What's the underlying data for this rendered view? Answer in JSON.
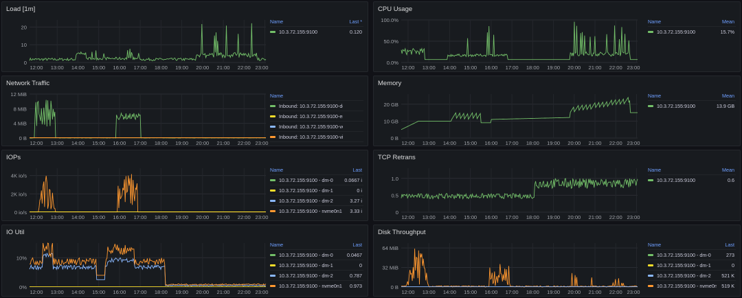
{
  "colors": {
    "green": "#73bf69",
    "yellow": "#fade2a",
    "blue": "#8ab8ff",
    "orange": "#ff9830",
    "red": "#f2495c"
  },
  "panels": [
    {
      "id": "load",
      "title": "Load [1m]",
      "cols": [
        "Name",
        "Last *"
      ],
      "yticks": [
        "20",
        "10",
        "0"
      ],
      "xticks": [
        "12:00",
        "13:00",
        "14:00",
        "15:00",
        "16:00",
        "17:00",
        "18:00",
        "19:00",
        "20:00",
        "21:00",
        "22:00",
        "23:00"
      ],
      "rows": [
        {
          "color": "green",
          "name": "10.3.72.155:9100",
          "value": "0.120"
        }
      ]
    },
    {
      "id": "cpu",
      "title": "CPU Usage",
      "cols": [
        "Name",
        "Mean"
      ],
      "yticks": [
        "100.0%",
        "50.0%",
        "0.0%"
      ],
      "xticks": [
        "12:00",
        "13:00",
        "14:00",
        "15:00",
        "16:00",
        "17:00",
        "18:00",
        "19:00",
        "20:00",
        "21:00",
        "22:00",
        "23:00"
      ],
      "rows": [
        {
          "color": "green",
          "name": "10.3.72.155:9100",
          "value": "15.7%"
        }
      ]
    },
    {
      "id": "net",
      "title": "Network Traffic",
      "cols": [
        "Name",
        ""
      ],
      "yticks": [
        "12 MiB",
        "8 MiB",
        "4 MiB",
        "0 B"
      ],
      "xticks": [
        "12:00",
        "13:00",
        "14:00",
        "15:00",
        "16:00",
        "17:00",
        "18:00",
        "19:00",
        "20:00",
        "21:00",
        "22:00",
        "23:00"
      ],
      "rows": [
        {
          "color": "green",
          "name": "Inbound: 10.3.72.155:9100-docker0",
          "value": ""
        },
        {
          "color": "yellow",
          "name": "Inbound: 10.3.72.155:9100-eno1",
          "value": ""
        },
        {
          "color": "blue",
          "name": "Inbound: 10.3.72.155:9100-vethecff7a6",
          "value": ""
        },
        {
          "color": "orange",
          "name": "Inbound: 10.3.72.155:9100-virbr0",
          "value": ""
        },
        {
          "color": "red",
          "name": "Inbound: 10.3.72.155:9100-virbr0-nic",
          "value": ""
        }
      ]
    },
    {
      "id": "mem",
      "title": "Memory",
      "cols": [
        "Name",
        "Mean"
      ],
      "yticks": [
        "20 GB",
        "10 GB",
        "0 B"
      ],
      "xticks": [
        "12:00",
        "13:00",
        "14:00",
        "15:00",
        "16:00",
        "17:00",
        "18:00",
        "19:00",
        "20:00",
        "21:00",
        "22:00",
        "23:00"
      ],
      "rows": [
        {
          "color": "green",
          "name": "10.3.72.155:9100",
          "value": "13.9 GB"
        }
      ]
    },
    {
      "id": "iops",
      "title": "IOPs",
      "cols": [
        "Name",
        "Last"
      ],
      "yticks": [
        "4K io/s",
        "2K io/s",
        "0 io/s"
      ],
      "xticks": [
        "12:00",
        "13:00",
        "14:00",
        "15:00",
        "16:00",
        "17:00",
        "18:00",
        "19:00",
        "20:00",
        "21:00",
        "22:00",
        "23:00"
      ],
      "rows": [
        {
          "color": "green",
          "name": "10.3.72.155:9100 - dm-0",
          "value": "0.0667 i"
        },
        {
          "color": "yellow",
          "name": "10.3.72.155:9100 - dm-1",
          "value": "0 i"
        },
        {
          "color": "blue",
          "name": "10.3.72.155:9100 - dm-2",
          "value": "3.27 i"
        },
        {
          "color": "orange",
          "name": "10.3.72.155:9100 - nvme0n1",
          "value": "3.33 i"
        }
      ]
    },
    {
      "id": "tcp",
      "title": "TCP Retrans",
      "cols": [
        "Name",
        "Mean"
      ],
      "yticks": [
        "1.0",
        "0.5",
        "0"
      ],
      "xticks": [
        "12:00",
        "13:00",
        "14:00",
        "15:00",
        "16:00",
        "17:00",
        "18:00",
        "19:00",
        "20:00",
        "21:00",
        "22:00",
        "23:00"
      ],
      "rows": [
        {
          "color": "green",
          "name": "10.3.72.155:9100",
          "value": "0.6"
        }
      ]
    },
    {
      "id": "ioutil",
      "title": "IO Util",
      "cols": [
        "Name",
        "Last"
      ],
      "yticks": [
        "10%",
        "0%"
      ],
      "xticks": [
        "12:00",
        "13:00",
        "14:00",
        "15:00",
        "16:00",
        "17:00",
        "18:00",
        "19:00",
        "20:00",
        "21:00",
        "22:00",
        "23:00"
      ],
      "rows": [
        {
          "color": "green",
          "name": "10.3.72.155:9100 - dm-0",
          "value": "0.0467"
        },
        {
          "color": "yellow",
          "name": "10.3.72.155:9100 - dm-1",
          "value": "0"
        },
        {
          "color": "blue",
          "name": "10.3.72.155:9100 - dm-2",
          "value": "0.787"
        },
        {
          "color": "orange",
          "name": "10.3.72.155:9100 - nvme0n1",
          "value": "0.973"
        }
      ]
    },
    {
      "id": "disk",
      "title": "Disk Throughput",
      "cols": [
        "Name",
        "Last"
      ],
      "yticks": [
        "64 MiB",
        "32 MiB",
        "0 B"
      ],
      "xticks": [
        "12:00",
        "13:00",
        "14:00",
        "15:00",
        "16:00",
        "17:00",
        "18:00",
        "19:00",
        "20:00",
        "21:00",
        "22:00",
        "23:00"
      ],
      "rows": [
        {
          "color": "green",
          "name": "10.3.72.155:9100 - dm-0",
          "value": "273"
        },
        {
          "color": "yellow",
          "name": "10.3.72.155:9100 - dm-1",
          "value": "0"
        },
        {
          "color": "blue",
          "name": "10.3.72.155:9100 - dm-2",
          "value": "521 K"
        },
        {
          "color": "orange",
          "name": "10.3.72.155:9100 - nvme0n1",
          "value": "519 K"
        }
      ]
    }
  ]
}
